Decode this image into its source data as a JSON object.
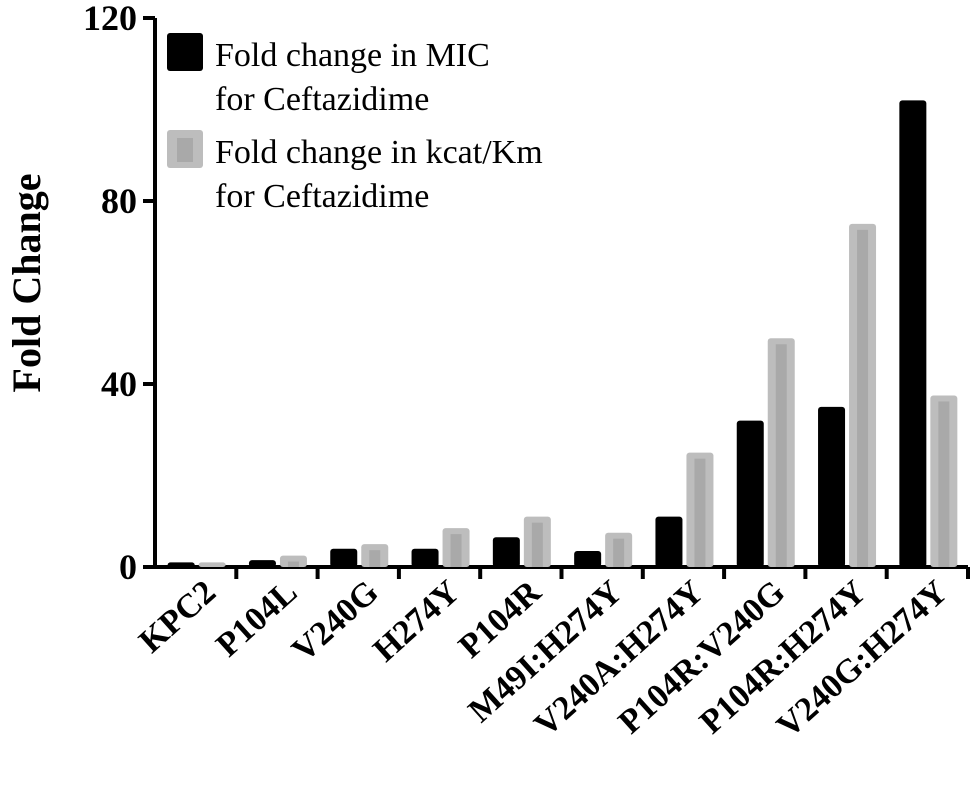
{
  "chart_data": {
    "type": "bar",
    "ylabel": "Fold Change",
    "ylim": [
      0,
      120
    ],
    "yticks": [
      0,
      40,
      80,
      120
    ],
    "categories": [
      "KPC2",
      "P104L",
      "V240G",
      "H274Y",
      "P104R",
      "M49I:H274Y",
      "V240A:H274Y",
      "P104R:V240G",
      "P104R:H274Y",
      "V240G:H274Y"
    ],
    "series": [
      {
        "name": "Fold change in MIC for Ceftazidime",
        "legend_lines": [
          "Fold change in MIC",
          "for Ceftazidime"
        ],
        "color": "#000000",
        "values": [
          1,
          1.5,
          4,
          4,
          6.5,
          3.5,
          11,
          32,
          35,
          102
        ]
      },
      {
        "name": "Fold change in kcat/Km for Ceftazidime",
        "legend_lines": [
          "Fold change in kcat/Km",
          "for Ceftazidime"
        ],
        "color": "#bdbdbd",
        "values": [
          1,
          2.5,
          5,
          8.5,
          11,
          7.5,
          25,
          50,
          75,
          37.5
        ]
      }
    ],
    "legend_position": "top-left",
    "grid": false
  }
}
